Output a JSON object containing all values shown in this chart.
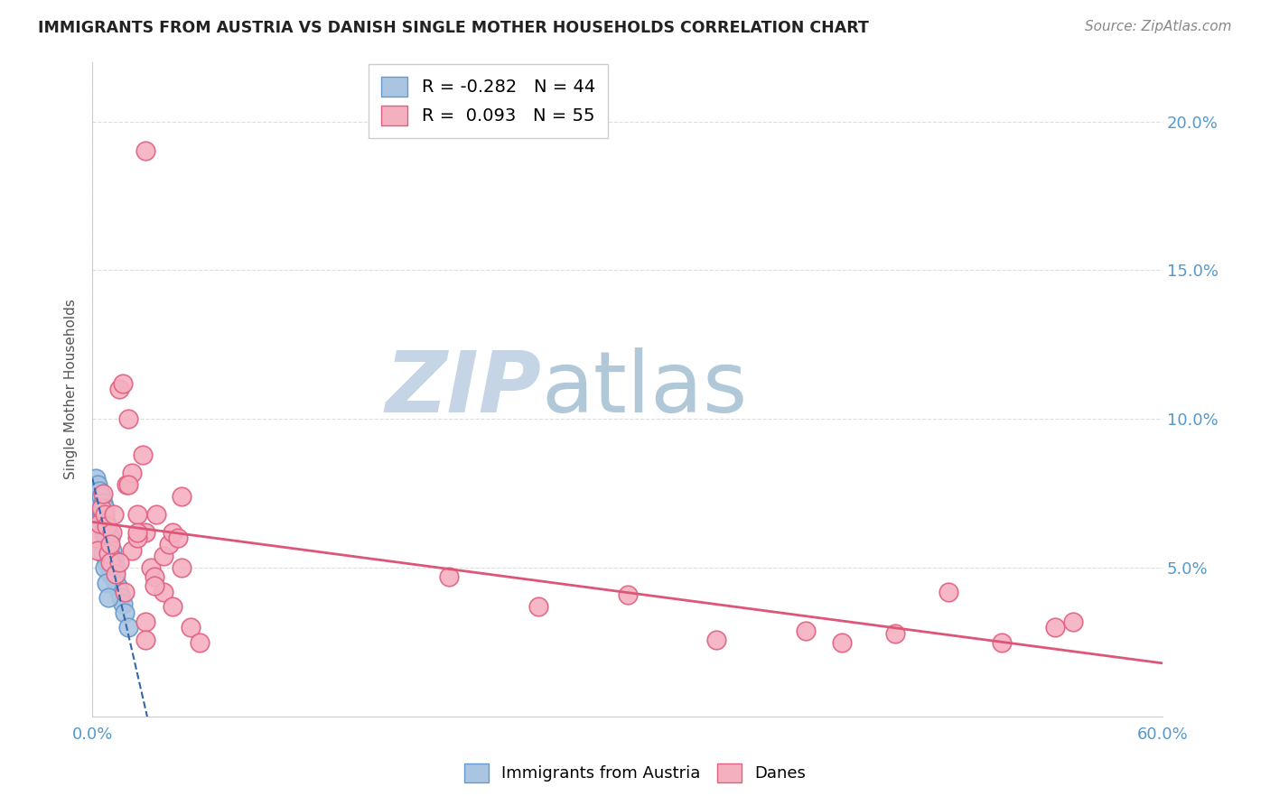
{
  "title": "IMMIGRANTS FROM AUSTRIA VS DANISH SINGLE MOTHER HOUSEHOLDS CORRELATION CHART",
  "source": "Source: ZipAtlas.com",
  "ylabel": "Single Mother Households",
  "xlim": [
    0,
    0.6
  ],
  "ylim": [
    0,
    0.22
  ],
  "blue_R": -0.282,
  "blue_N": 44,
  "pink_R": 0.093,
  "pink_N": 55,
  "blue_color": "#aac5e2",
  "pink_color": "#f5b0c0",
  "blue_edge": "#6699cc",
  "pink_edge": "#e06080",
  "blue_line_color": "#3366aa",
  "pink_line_color": "#dd5577",
  "watermark_zip_color": "#c5d5e5",
  "watermark_atlas_color": "#b0c8d8",
  "title_color": "#222222",
  "axis_label_color": "#555555",
  "tick_color_right": "#5599cc",
  "grid_color": "#dddddd",
  "legend_edge_color": "#cccccc",
  "blue_x": [
    0.002,
    0.003,
    0.003,
    0.004,
    0.004,
    0.005,
    0.005,
    0.005,
    0.006,
    0.006,
    0.006,
    0.006,
    0.007,
    0.007,
    0.007,
    0.007,
    0.008,
    0.008,
    0.008,
    0.008,
    0.009,
    0.009,
    0.009,
    0.01,
    0.01,
    0.01,
    0.01,
    0.011,
    0.011,
    0.011,
    0.012,
    0.012,
    0.013,
    0.013,
    0.014,
    0.015,
    0.016,
    0.017,
    0.018,
    0.02,
    0.006,
    0.007,
    0.008,
    0.009
  ],
  "blue_y": [
    0.08,
    0.078,
    0.072,
    0.076,
    0.068,
    0.074,
    0.069,
    0.066,
    0.072,
    0.068,
    0.065,
    0.062,
    0.07,
    0.066,
    0.062,
    0.058,
    0.065,
    0.06,
    0.056,
    0.052,
    0.062,
    0.058,
    0.054,
    0.06,
    0.056,
    0.052,
    0.048,
    0.056,
    0.052,
    0.048,
    0.053,
    0.048,
    0.05,
    0.045,
    0.044,
    0.042,
    0.04,
    0.038,
    0.035,
    0.03,
    0.055,
    0.05,
    0.045,
    0.04
  ],
  "pink_x": [
    0.002,
    0.003,
    0.004,
    0.005,
    0.006,
    0.007,
    0.008,
    0.009,
    0.01,
    0.011,
    0.013,
    0.015,
    0.017,
    0.019,
    0.02,
    0.022,
    0.025,
    0.028,
    0.03,
    0.033,
    0.036,
    0.04,
    0.043,
    0.045,
    0.048,
    0.05,
    0.022,
    0.025,
    0.03,
    0.035,
    0.04,
    0.045,
    0.05,
    0.055,
    0.06,
    0.01,
    0.012,
    0.015,
    0.018,
    0.02,
    0.025,
    0.03,
    0.035,
    0.2,
    0.25,
    0.3,
    0.35,
    0.4,
    0.42,
    0.45,
    0.48,
    0.51,
    0.54,
    0.03,
    0.55
  ],
  "pink_y": [
    0.06,
    0.056,
    0.065,
    0.07,
    0.075,
    0.068,
    0.064,
    0.055,
    0.052,
    0.062,
    0.048,
    0.11,
    0.112,
    0.078,
    0.1,
    0.056,
    0.068,
    0.088,
    0.062,
    0.05,
    0.068,
    0.054,
    0.058,
    0.062,
    0.06,
    0.074,
    0.082,
    0.06,
    0.032,
    0.047,
    0.042,
    0.037,
    0.05,
    0.03,
    0.025,
    0.058,
    0.068,
    0.052,
    0.042,
    0.078,
    0.062,
    0.026,
    0.044,
    0.047,
    0.037,
    0.041,
    0.026,
    0.029,
    0.025,
    0.028,
    0.042,
    0.025,
    0.03,
    0.19,
    0.032
  ]
}
